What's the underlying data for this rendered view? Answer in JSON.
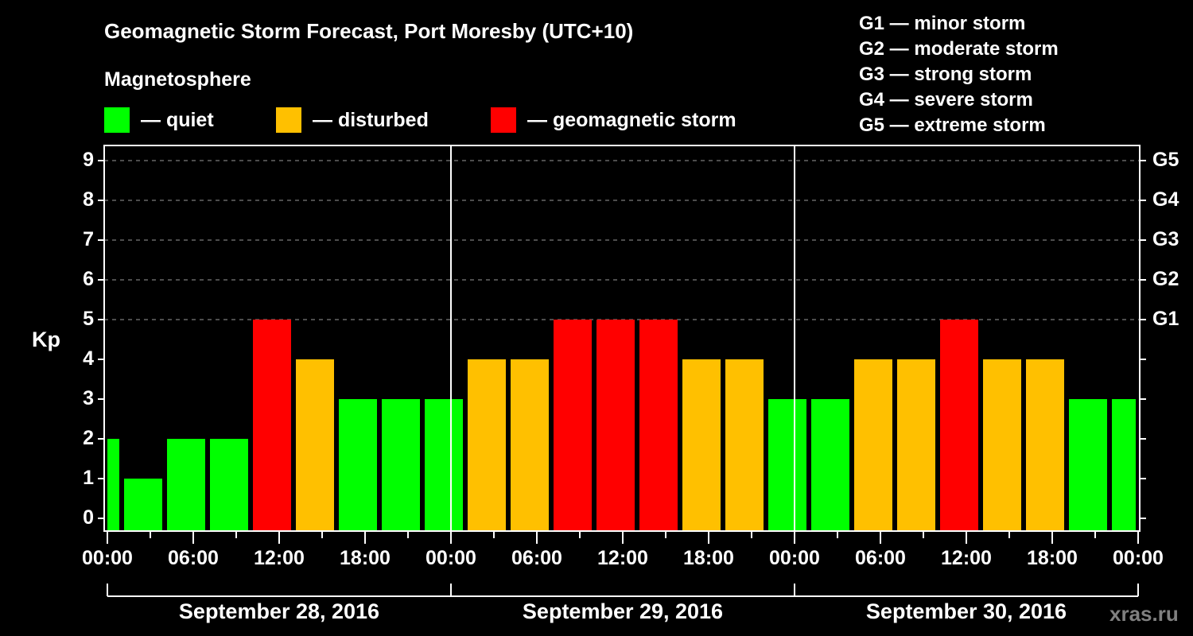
{
  "header": {
    "title": "Geomagnetic Storm Forecast, Port Moresby (UTC+10)",
    "subtitle": "Magnetosphere"
  },
  "legend": [
    {
      "label": "— quiet",
      "color": "#00ff00"
    },
    {
      "label": "— disturbed",
      "color": "#ffc000"
    },
    {
      "label": "— geomagnetic storm",
      "color": "#ff0000"
    }
  ],
  "g_scale_legend": [
    "G1 — minor storm",
    "G2 — moderate storm",
    "G3 — strong storm",
    "G4 — severe storm",
    "G5 — extreme storm"
  ],
  "credit": "xras.ru",
  "chart_data": {
    "type": "bar",
    "title": "Geomagnetic Storm Forecast, Port Moresby (UTC+10)",
    "xlabel": "",
    "ylabel": "Kp",
    "ylim": [
      0,
      9
    ],
    "yticks": [
      0,
      1,
      2,
      3,
      4,
      5,
      6,
      7,
      8,
      9
    ],
    "right_axis_ticks": [
      {
        "kp": 5,
        "label": "G1"
      },
      {
        "kp": 6,
        "label": "G2"
      },
      {
        "kp": 7,
        "label": "G3"
      },
      {
        "kp": 8,
        "label": "G4"
      },
      {
        "kp": 9,
        "label": "G5"
      }
    ],
    "xtick_labels": [
      "00:00",
      "06:00",
      "12:00",
      "18:00",
      "00:00",
      "06:00",
      "12:00",
      "18:00",
      "00:00",
      "06:00",
      "12:00",
      "18:00",
      "00:00"
    ],
    "dates": [
      "September 28, 2016",
      "September 29, 2016",
      "September 30, 2016"
    ],
    "grid": "dashed horizontal at Kp 5-9",
    "color_scale": {
      "quiet": "#00ff00",
      "disturbed": "#ffc000",
      "storm": "#ff0000"
    },
    "bars": [
      {
        "start_h": 0,
        "end_h": 1,
        "kp": 2,
        "status": "quiet"
      },
      {
        "start_h": 1,
        "end_h": 4,
        "kp": 1,
        "status": "quiet"
      },
      {
        "start_h": 4,
        "end_h": 7,
        "kp": 2,
        "status": "quiet"
      },
      {
        "start_h": 7,
        "end_h": 10,
        "kp": 2,
        "status": "quiet"
      },
      {
        "start_h": 10,
        "end_h": 13,
        "kp": 5,
        "status": "storm"
      },
      {
        "start_h": 13,
        "end_h": 16,
        "kp": 4,
        "status": "disturbed"
      },
      {
        "start_h": 16,
        "end_h": 19,
        "kp": 3,
        "status": "quiet"
      },
      {
        "start_h": 19,
        "end_h": 22,
        "kp": 3,
        "status": "quiet"
      },
      {
        "start_h": 22,
        "end_h": 25,
        "kp": 3,
        "status": "quiet"
      },
      {
        "start_h": 25,
        "end_h": 28,
        "kp": 4,
        "status": "disturbed"
      },
      {
        "start_h": 28,
        "end_h": 31,
        "kp": 4,
        "status": "disturbed"
      },
      {
        "start_h": 31,
        "end_h": 34,
        "kp": 5,
        "status": "storm"
      },
      {
        "start_h": 34,
        "end_h": 37,
        "kp": 5,
        "status": "storm"
      },
      {
        "start_h": 37,
        "end_h": 40,
        "kp": 5,
        "status": "storm"
      },
      {
        "start_h": 40,
        "end_h": 43,
        "kp": 4,
        "status": "disturbed"
      },
      {
        "start_h": 43,
        "end_h": 46,
        "kp": 4,
        "status": "disturbed"
      },
      {
        "start_h": 46,
        "end_h": 49,
        "kp": 3,
        "status": "quiet"
      },
      {
        "start_h": 49,
        "end_h": 52,
        "kp": 3,
        "status": "quiet"
      },
      {
        "start_h": 52,
        "end_h": 55,
        "kp": 4,
        "status": "disturbed"
      },
      {
        "start_h": 55,
        "end_h": 58,
        "kp": 4,
        "status": "disturbed"
      },
      {
        "start_h": 58,
        "end_h": 61,
        "kp": 5,
        "status": "storm"
      },
      {
        "start_h": 61,
        "end_h": 64,
        "kp": 4,
        "status": "disturbed"
      },
      {
        "start_h": 64,
        "end_h": 67,
        "kp": 4,
        "status": "disturbed"
      },
      {
        "start_h": 67,
        "end_h": 70,
        "kp": 3,
        "status": "quiet"
      },
      {
        "start_h": 70,
        "end_h": 72,
        "kp": 3,
        "status": "quiet"
      }
    ]
  }
}
